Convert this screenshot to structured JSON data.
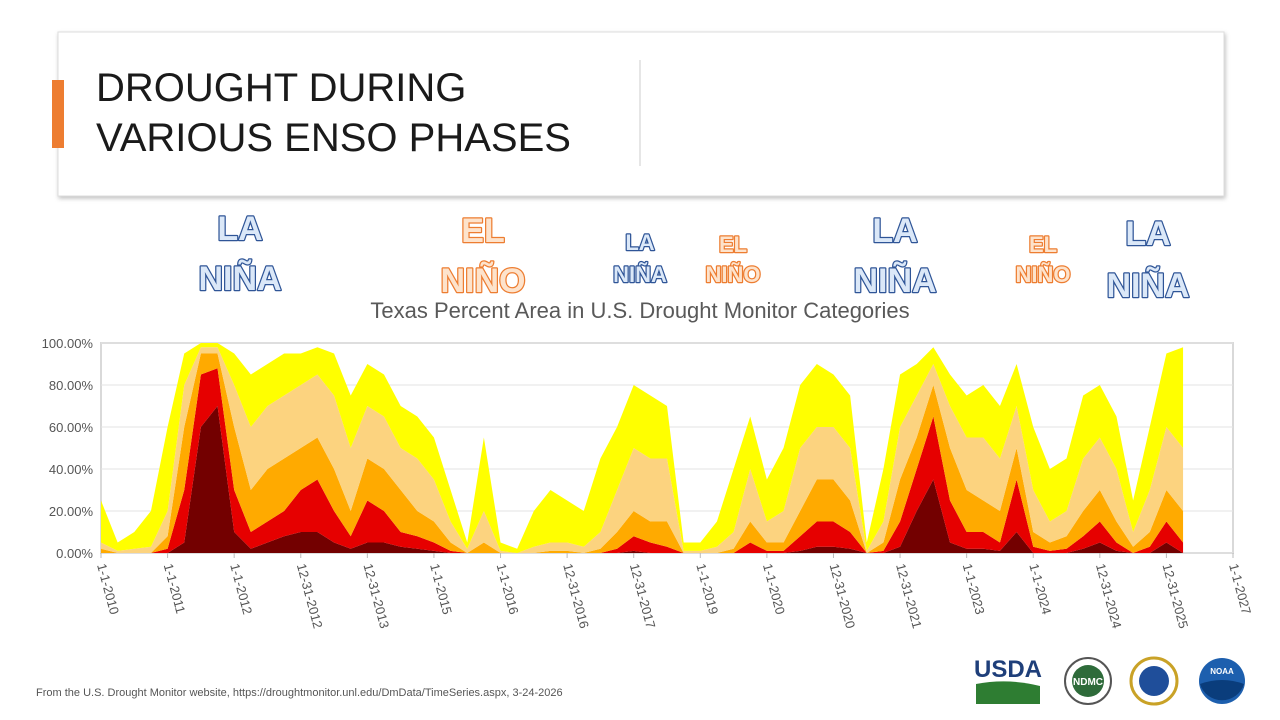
{
  "slide": {
    "title_lines": [
      "DROUGHT DURING",
      "VARIOUS ENSO PHASES"
    ],
    "footer": "From the U.S. Drought Monitor website, https://droughtmonitor.unl.edu/DmData/TimeSeries.aspx, 3-24-2026",
    "logos": [
      "USDA",
      "NDMC",
      "NOAA"
    ]
  },
  "chart_data": {
    "type": "area",
    "title": "Texas Percent Area in U.S. Drought Monitor Categories",
    "stacked": true,
    "grid": true,
    "annotations": [
      {
        "lines": [
          "LA",
          "NIÑA"
        ]
      },
      {
        "lines": [
          "EL",
          "NIÑO"
        ]
      },
      {
        "lines": [
          "LA",
          "NIÑA"
        ]
      },
      {
        "lines": [
          "EL",
          "NIÑO"
        ]
      },
      {
        "lines": [
          "LA",
          "NIÑA"
        ]
      },
      {
        "lines": [
          "EL",
          "NIÑO"
        ]
      },
      {
        "lines": [
          "LA",
          "NIÑA"
        ]
      }
    ],
    "xlim": [
      2010,
      2027
    ],
    "xticks": [
      {
        "value": 2010,
        "label": "1-1-2010"
      },
      {
        "value": 2011,
        "label": "1-1-2011"
      },
      {
        "value": 2012,
        "label": "1-1-2012"
      },
      {
        "value": 2013,
        "label": "12-31-2012"
      },
      {
        "value": 2014,
        "label": "12-31-2013"
      },
      {
        "value": 2015,
        "label": "1-1-2015"
      },
      {
        "value": 2016,
        "label": "1-1-2016"
      },
      {
        "value": 2017,
        "label": "12-31-2016"
      },
      {
        "value": 2018,
        "label": "12-31-2017"
      },
      {
        "value": 2019,
        "label": "1-1-2019"
      },
      {
        "value": 2020,
        "label": "1-1-2020"
      },
      {
        "value": 2021,
        "label": "12-31-2020"
      },
      {
        "value": 2022,
        "label": "12-31-2021"
      },
      {
        "value": 2023,
        "label": "1-1-2023"
      },
      {
        "value": 2024,
        "label": "1-1-2024"
      },
      {
        "value": 2025,
        "label": "12-31-2024"
      },
      {
        "value": 2026,
        "label": "12-31-2025"
      },
      {
        "value": 2027,
        "label": "1-1-2027"
      }
    ],
    "ylim": [
      0,
      100
    ],
    "yticks": [
      {
        "value": 0,
        "label": "0.00%"
      },
      {
        "value": 20,
        "label": "20.00%"
      },
      {
        "value": 40,
        "label": "40.00%"
      },
      {
        "value": 60,
        "label": "60.00%"
      },
      {
        "value": 80,
        "label": "80.00%"
      },
      {
        "value": 100,
        "label": "100.00%"
      }
    ],
    "x": [
      2010,
      2010.25,
      2010.5,
      2010.75,
      2011,
      2011.25,
      2011.5,
      2011.75,
      2012,
      2012.25,
      2012.5,
      2012.75,
      2013,
      2013.25,
      2013.5,
      2013.75,
      2014,
      2014.25,
      2014.5,
      2014.75,
      2015,
      2015.25,
      2015.5,
      2015.75,
      2016,
      2016.25,
      2016.5,
      2016.75,
      2017,
      2017.25,
      2017.5,
      2017.75,
      2018,
      2018.25,
      2018.5,
      2018.75,
      2019,
      2019.25,
      2019.5,
      2019.75,
      2020,
      2020.25,
      2020.5,
      2020.75,
      2021,
      2021.25,
      2021.5,
      2021.75,
      2022,
      2022.25,
      2022.5,
      2022.75,
      2023,
      2023.25,
      2023.5,
      2023.75,
      2024,
      2024.25,
      2024.5,
      2024.75,
      2025,
      2025.25,
      2025.5,
      2025.75,
      2026,
      2026.25
    ],
    "series": [
      {
        "color": "#730000",
        "values": [
          0,
          0,
          0,
          0,
          0,
          5,
          60,
          70,
          10,
          2,
          5,
          8,
          10,
          10,
          5,
          2,
          5,
          5,
          3,
          2,
          1,
          0,
          0,
          0,
          0,
          0,
          0,
          0,
          0,
          0,
          0,
          0,
          1,
          0,
          0,
          0,
          0,
          0,
          0,
          0,
          0,
          0,
          1,
          3,
          3,
          2,
          0,
          0,
          3,
          20,
          35,
          5,
          2,
          2,
          1,
          10,
          0,
          0,
          0,
          2,
          5,
          1,
          0,
          0,
          5,
          0
        ]
      },
      {
        "color": "#e60000",
        "values": [
          0,
          0,
          0,
          0,
          2,
          25,
          25,
          18,
          20,
          8,
          10,
          12,
          20,
          25,
          15,
          6,
          20,
          15,
          7,
          6,
          4,
          1,
          0,
          0,
          0,
          0,
          0,
          0,
          0,
          0,
          0,
          2,
          7,
          5,
          3,
          0,
          0,
          0,
          0,
          5,
          1,
          1,
          7,
          12,
          12,
          8,
          0,
          1,
          12,
          20,
          30,
          20,
          8,
          8,
          4,
          25,
          3,
          1,
          2,
          6,
          10,
          4,
          0,
          3,
          10,
          5
        ]
      },
      {
        "color": "#ffaa00",
        "values": [
          2,
          0,
          0,
          0,
          6,
          30,
          10,
          7,
          30,
          20,
          25,
          25,
          20,
          20,
          20,
          12,
          20,
          20,
          20,
          12,
          10,
          4,
          0,
          5,
          0,
          0,
          0,
          1,
          1,
          0,
          2,
          8,
          12,
          10,
          12,
          0,
          0,
          0,
          2,
          10,
          4,
          4,
          12,
          20,
          20,
          15,
          0,
          4,
          20,
          15,
          15,
          25,
          20,
          15,
          15,
          15,
          7,
          4,
          6,
          12,
          15,
          10,
          3,
          7,
          15,
          15
        ]
      },
      {
        "color": "#fcd37f",
        "values": [
          3,
          1,
          2,
          3,
          12,
          20,
          3,
          3,
          20,
          30,
          30,
          30,
          30,
          30,
          35,
          30,
          25,
          25,
          20,
          25,
          20,
          10,
          2,
          15,
          1,
          0,
          3,
          4,
          4,
          3,
          8,
          20,
          30,
          30,
          30,
          1,
          1,
          3,
          8,
          25,
          10,
          15,
          30,
          25,
          25,
          25,
          1,
          10,
          25,
          20,
          10,
          20,
          25,
          30,
          25,
          20,
          20,
          10,
          12,
          25,
          25,
          25,
          7,
          20,
          30,
          30
        ]
      },
      {
        "color": "#ffff00",
        "values": [
          20,
          4,
          8,
          17,
          40,
          15,
          2,
          2,
          15,
          25,
          20,
          20,
          15,
          13,
          20,
          25,
          20,
          20,
          20,
          20,
          20,
          15,
          3,
          35,
          4,
          2,
          17,
          25,
          20,
          17,
          35,
          30,
          30,
          30,
          25,
          4,
          4,
          12,
          30,
          25,
          20,
          30,
          30,
          30,
          25,
          25,
          4,
          25,
          25,
          15,
          8,
          15,
          20,
          25,
          25,
          20,
          30,
          25,
          25,
          30,
          25,
          25,
          15,
          30,
          35,
          48
        ]
      }
    ]
  }
}
